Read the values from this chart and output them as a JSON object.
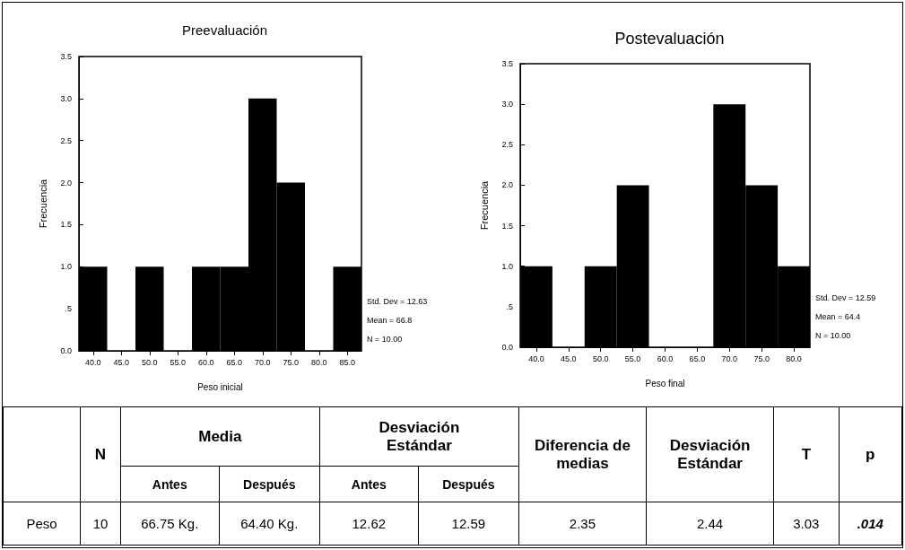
{
  "chart_data": [
    {
      "type": "histogram",
      "title": "Preevaluación",
      "xlabel": "Peso inicial",
      "ylabel": "Frecuencia",
      "color": "#000000",
      "bins": [
        37.5,
        42.5,
        47.5,
        52.5,
        57.5,
        62.5,
        67.5,
        72.5,
        77.5,
        82.5,
        87.5
      ],
      "values": [
        1,
        0,
        1,
        0,
        1,
        1,
        3,
        2,
        0,
        1
      ],
      "xlim": [
        37.5,
        87.5
      ],
      "xticks": [
        {
          "value": 40,
          "label": "40.0"
        },
        {
          "value": 45,
          "label": "45.0"
        },
        {
          "value": 50,
          "label": "50.0"
        },
        {
          "value": 55,
          "label": "55.0"
        },
        {
          "value": 60,
          "label": "60.0"
        },
        {
          "value": 65,
          "label": "65.0"
        },
        {
          "value": 70,
          "label": "70.0"
        },
        {
          "value": 75,
          "label": "75.0"
        },
        {
          "value": 80,
          "label": "80.0"
        },
        {
          "value": 85,
          "label": "85.0"
        }
      ],
      "ylim": [
        0,
        3.5
      ],
      "yticks": [
        {
          "value": 0,
          "label": "0.0"
        },
        {
          "value": 0.5,
          "label": ".5"
        },
        {
          "value": 1,
          "label": "1.0"
        },
        {
          "value": 1.5,
          "label": "1.5"
        },
        {
          "value": 2,
          "label": "2.0"
        },
        {
          "value": 2.5,
          "label": "2.5"
        },
        {
          "value": 3,
          "label": "3.0"
        },
        {
          "value": 3.5,
          "label": "3.5"
        }
      ],
      "annotations": [
        "Std. Dev = 12.63",
        "Mean = 66.8",
        "N = 10.00"
      ]
    },
    {
      "type": "histogram",
      "title": "Postevaluación",
      "xlabel": "Peso final",
      "ylabel": "Frecuencia",
      "color": "#000000",
      "bins": [
        37.5,
        42.5,
        47.5,
        52.5,
        57.5,
        62.5,
        67.5,
        72.5,
        77.5,
        82.5
      ],
      "values": [
        1,
        0,
        1,
        2,
        0,
        0,
        3,
        2,
        1
      ],
      "xlim": [
        37.5,
        82.5
      ],
      "xticks": [
        {
          "value": 40,
          "label": "40.0"
        },
        {
          "value": 45,
          "label": "45.0"
        },
        {
          "value": 50,
          "label": "50.0"
        },
        {
          "value": 55,
          "label": "55.0"
        },
        {
          "value": 60,
          "label": "60.0"
        },
        {
          "value": 65,
          "label": "65.0"
        },
        {
          "value": 70,
          "label": "70.0"
        },
        {
          "value": 75,
          "label": "75.0"
        },
        {
          "value": 80,
          "label": "80.0"
        }
      ],
      "ylim": [
        0,
        3.5
      ],
      "yticks": [
        {
          "value": 0,
          "label": "0.0"
        },
        {
          "value": 0.5,
          "label": ".5"
        },
        {
          "value": 1,
          "label": "1.0"
        },
        {
          "value": 1.5,
          "label": "1.5"
        },
        {
          "value": 2,
          "label": "2.0"
        },
        {
          "value": 2.5,
          "label": "2.5"
        },
        {
          "value": 3,
          "label": "3.0"
        },
        {
          "value": 3.5,
          "label": "3.5"
        }
      ],
      "annotations": [
        "Std. Dev = 12.59",
        "Mean = 64.4",
        "N = 10.00"
      ]
    },
    {
      "type": "other",
      "annotations": [
        "N",
        "Media",
        "Desviación Estándar",
        "Diferencia de medias",
        "Desviación Estándar",
        "T",
        "p",
        "Antes",
        "Después",
        "Antes",
        "Después",
        "Peso",
        "10",
        "66.75 Kg.",
        "64.40 Kg.",
        "12.62",
        "12.59",
        "2.35",
        "2.44",
        "3.03",
        ".014"
      ]
    }
  ]
}
